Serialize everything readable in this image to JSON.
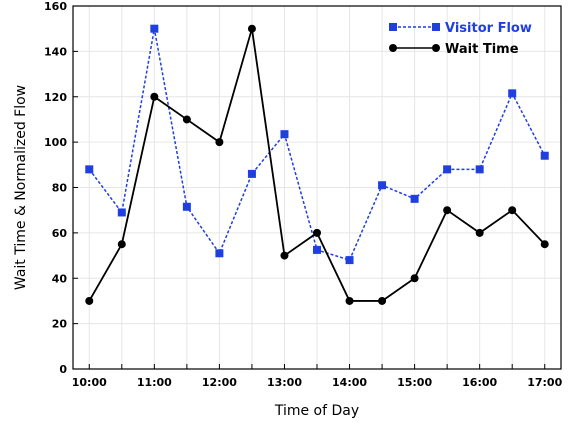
{
  "chart_data": {
    "type": "line",
    "title": "",
    "xlabel": "Time of Day",
    "ylabel": "Wait Time & Normalized Flow",
    "x": [
      "10:00",
      "10:30",
      "11:00",
      "11:30",
      "12:00",
      "12:30",
      "13:00",
      "13:30",
      "14:00",
      "14:30",
      "15:00",
      "15:30",
      "16:00",
      "16:30",
      "17:00"
    ],
    "x_tick_labels": [
      "10:00",
      "11:00",
      "12:00",
      "13:00",
      "14:00",
      "15:00",
      "16:00",
      "17:00"
    ],
    "xlim": [
      "09:45",
      "17:15"
    ],
    "ylim": [
      0,
      160
    ],
    "y_ticks": [
      0,
      20,
      40,
      60,
      80,
      100,
      120,
      140,
      160
    ],
    "grid": true,
    "legend_position": "top-right",
    "series": [
      {
        "name": "Visitor Flow",
        "color": "#1f3fe0",
        "line_style": "dotted",
        "marker": "square",
        "values": [
          88,
          69,
          150,
          71.5,
          51,
          86,
          103.5,
          52.5,
          48,
          81,
          75,
          88,
          88,
          121.5,
          94
        ]
      },
      {
        "name": "Wait Time",
        "color": "#000000",
        "line_style": "solid",
        "marker": "circle",
        "values": [
          30,
          55,
          120,
          110,
          100,
          150,
          50,
          60,
          30,
          30,
          40,
          70,
          60,
          70,
          55
        ]
      }
    ]
  }
}
